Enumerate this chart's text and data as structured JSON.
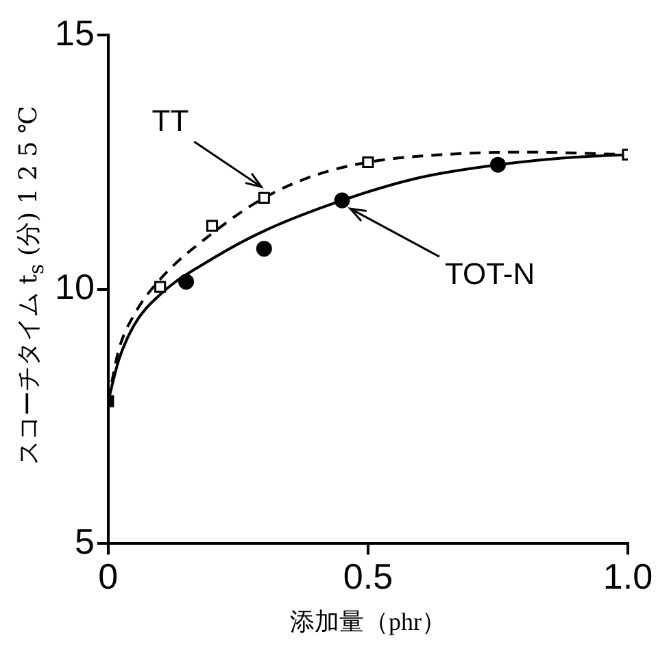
{
  "chart_data": {
    "type": "scatter",
    "xlabel": "添加量（phr）",
    "ylabel": "スコーチタイム t$_{s}$ (分) 1 2 5 ℃",
    "xlim": [
      0,
      1.0
    ],
    "xticks": [
      0,
      0.5,
      {
        "value": 1.0,
        "label": "1.0"
      }
    ],
    "ylim": [
      5,
      15
    ],
    "yticks": [
      5,
      10,
      15
    ],
    "grid": false,
    "legend": false,
    "series": [
      {
        "type": "line",
        "color": "#000000",
        "line_style": "dashed",
        "marker": "none",
        "x": [
          0,
          0.02,
          0.05,
          0.1,
          0.2,
          0.3,
          0.4,
          0.5,
          0.6,
          0.8,
          1.0
        ],
        "values": [
          7.8,
          8.8,
          9.5,
          10.2,
          11.1,
          11.8,
          12.25,
          12.5,
          12.62,
          12.7,
          12.65
        ]
      },
      {
        "type": "line",
        "color": "#000000",
        "line_style": "solid",
        "marker": "none",
        "x": [
          0,
          0.02,
          0.05,
          0.1,
          0.2,
          0.3,
          0.45,
          0.6,
          0.75,
          0.9,
          1.0
        ],
        "values": [
          7.8,
          8.6,
          9.3,
          9.9,
          10.6,
          11.15,
          11.75,
          12.2,
          12.45,
          12.6,
          12.65
        ]
      },
      {
        "name": "TT",
        "color": "#000000",
        "marker": "square",
        "x": [
          0.1,
          0.2,
          0.3,
          0.5,
          1.0
        ],
        "values": [
          10.05,
          11.25,
          11.8,
          12.5,
          12.65
        ]
      },
      {
        "name": "TOT-N",
        "color": "#000000",
        "marker": "circle",
        "x": [
          0.15,
          0.3,
          0.45,
          0.75
        ],
        "values": [
          10.15,
          10.8,
          11.75,
          12.45
        ]
      },
      {
        "color": "#000000",
        "marker": "square",
        "x": [
          0
        ],
        "values": [
          7.8
        ]
      }
    ]
  }
}
